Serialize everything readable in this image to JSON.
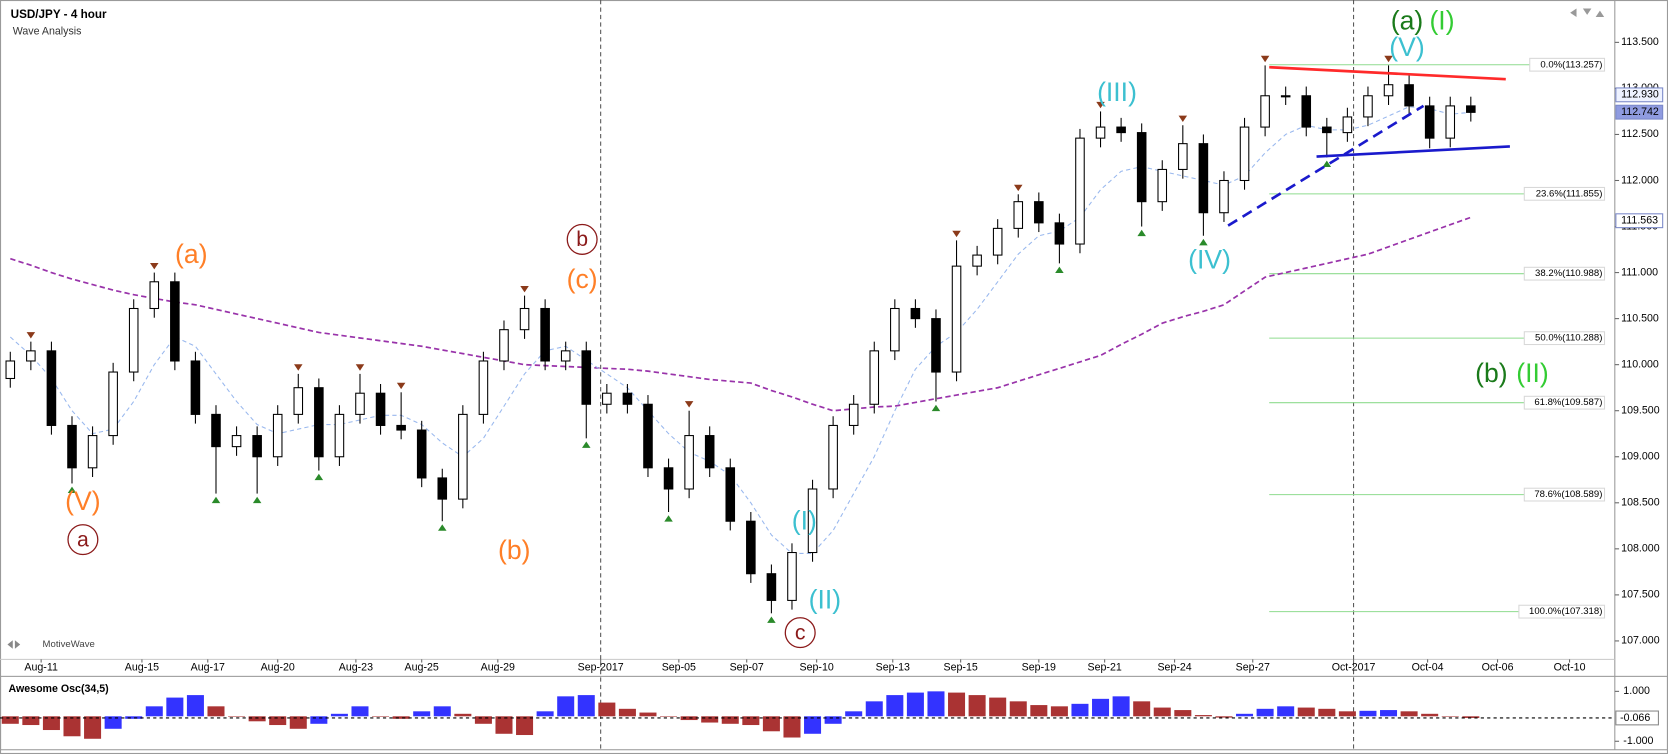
{
  "chart_data": [
    {
      "type": "candlestick",
      "title": "USD/JPY - 4 hour",
      "subtitle": "Wave Analysis",
      "brand": "MotiveWave",
      "grid": false,
      "xlim": [
        -0.5,
        78
      ],
      "ylim": [
        106.8,
        113.96
      ],
      "xticks": [
        {
          "value": 1.5,
          "label": "Aug-11"
        },
        {
          "value": 6.4,
          "label": "Aug-15"
        },
        {
          "value": 9.6,
          "label": "Aug-17"
        },
        {
          "value": 13.0,
          "label": "Aug-20"
        },
        {
          "value": 16.8,
          "label": "Aug-23"
        },
        {
          "value": 20.0,
          "label": "Aug-25"
        },
        {
          "value": 23.7,
          "label": "Aug-29"
        },
        {
          "value": 28.7,
          "label": "Sep-2017"
        },
        {
          "value": 32.5,
          "label": "Sep-05"
        },
        {
          "value": 35.8,
          "label": "Sep-07"
        },
        {
          "value": 39.2,
          "label": "Sep-10"
        },
        {
          "value": 42.9,
          "label": "Sep-13"
        },
        {
          "value": 46.2,
          "label": "Sep-15"
        },
        {
          "value": 50.0,
          "label": "Sep-19"
        },
        {
          "value": 53.2,
          "label": "Sep-21"
        },
        {
          "value": 56.6,
          "label": "Sep-24"
        },
        {
          "value": 60.4,
          "label": "Sep-27"
        },
        {
          "value": 65.3,
          "label": "Oct-2017"
        },
        {
          "value": 68.9,
          "label": "Oct-04"
        },
        {
          "value": 72.3,
          "label": "Oct-06"
        },
        {
          "value": 75.8,
          "label": "Oct-10"
        }
      ],
      "separators": [
        7,
        17
      ],
      "yticks": [
        {
          "value": 107,
          "label": "107.000"
        },
        {
          "value": 107.5,
          "label": "107.500"
        },
        {
          "value": 108,
          "label": "108.000"
        },
        {
          "value": 108.5,
          "label": "108.500"
        },
        {
          "value": 109,
          "label": "109.000"
        },
        {
          "value": 109.5,
          "label": "109.500"
        },
        {
          "value": 110,
          "label": "110.000"
        },
        {
          "value": 110.5,
          "label": "110.500"
        },
        {
          "value": 111,
          "label": "111.000"
        },
        {
          "value": 111.5,
          "label": "111.500"
        },
        {
          "value": 112,
          "label": "112.000"
        },
        {
          "value": 112.5,
          "label": "112.500"
        },
        {
          "value": 113,
          "label": "113.000"
        },
        {
          "value": 113.5,
          "label": "113.500"
        }
      ],
      "open": [
        109.85,
        110.04,
        110.15,
        109.34,
        108.88,
        109.23,
        109.92,
        110.61,
        110.9,
        110.04,
        109.46,
        109.11,
        109.23,
        109.0,
        109.46,
        109.75,
        109.0,
        109.46,
        109.69,
        109.34,
        109.29,
        108.77,
        108.54,
        109.46,
        110.04,
        110.38,
        110.61,
        110.04,
        110.15,
        109.57,
        109.69,
        109.57,
        108.88,
        108.65,
        109.23,
        108.88,
        108.3,
        107.73,
        107.44,
        107.96,
        108.65,
        109.34,
        109.57,
        110.15,
        110.61,
        110.5,
        109.92,
        111.07,
        111.19,
        111.48,
        111.77,
        111.54,
        111.31,
        112.46,
        112.58,
        112.52,
        111.77,
        112.12,
        112.4,
        111.65,
        112.0,
        112.58,
        112.92,
        112.92,
        112.58,
        112.52,
        112.69,
        112.92,
        113.04,
        112.81,
        112.46,
        112.81
      ],
      "high": [
        110.14,
        110.25,
        110.25,
        109.44,
        109.33,
        110.02,
        110.71,
        111.0,
        111.0,
        110.14,
        109.56,
        109.33,
        109.33,
        109.56,
        109.9,
        109.85,
        109.56,
        109.9,
        109.79,
        109.7,
        109.39,
        108.87,
        109.56,
        110.14,
        110.48,
        110.75,
        110.71,
        110.25,
        110.25,
        109.79,
        109.79,
        109.67,
        108.98,
        109.5,
        109.33,
        108.98,
        108.4,
        107.83,
        108.06,
        108.75,
        109.44,
        109.67,
        110.25,
        110.71,
        110.71,
        110.6,
        111.35,
        111.29,
        111.58,
        111.85,
        111.87,
        111.64,
        112.56,
        112.75,
        112.68,
        112.62,
        112.22,
        112.6,
        112.5,
        112.1,
        112.68,
        113.25,
        113.02,
        113.02,
        112.68,
        112.79,
        113.02,
        113.25,
        113.14,
        112.91,
        112.91,
        112.91
      ],
      "low": [
        109.75,
        109.94,
        109.24,
        108.71,
        108.78,
        109.13,
        109.82,
        110.51,
        109.94,
        109.36,
        108.6,
        109.01,
        108.6,
        108.9,
        109.36,
        108.85,
        108.9,
        109.36,
        109.24,
        109.19,
        108.67,
        108.3,
        108.44,
        109.36,
        109.94,
        110.28,
        109.94,
        109.94,
        109.2,
        109.47,
        109.47,
        108.78,
        108.4,
        108.55,
        108.78,
        108.2,
        107.63,
        107.3,
        107.34,
        107.86,
        108.55,
        109.24,
        109.47,
        110.05,
        110.4,
        109.6,
        109.82,
        110.97,
        111.09,
        111.38,
        111.44,
        111.1,
        111.21,
        112.36,
        112.42,
        111.5,
        111.67,
        112.02,
        111.4,
        111.55,
        111.9,
        112.48,
        112.82,
        112.48,
        112.25,
        112.42,
        112.59,
        112.82,
        112.71,
        112.35,
        112.36,
        112.64
      ],
      "close": [
        110.04,
        110.15,
        109.34,
        108.88,
        109.23,
        109.92,
        110.61,
        110.9,
        110.04,
        109.46,
        109.11,
        109.23,
        109.0,
        109.46,
        109.75,
        109.0,
        109.46,
        109.69,
        109.34,
        109.29,
        108.77,
        108.54,
        109.46,
        110.04,
        110.38,
        110.61,
        110.04,
        110.15,
        109.57,
        109.69,
        109.57,
        108.88,
        108.65,
        109.23,
        108.88,
        108.3,
        107.73,
        107.44,
        107.96,
        108.65,
        109.34,
        109.57,
        110.15,
        110.61,
        110.5,
        109.92,
        111.07,
        111.19,
        111.48,
        111.77,
        111.54,
        111.31,
        112.46,
        112.58,
        112.52,
        111.77,
        112.12,
        112.4,
        111.65,
        112.0,
        112.58,
        112.92,
        112.92,
        112.58,
        112.52,
        112.69,
        112.92,
        113.04,
        112.81,
        112.46,
        112.81,
        112.74
      ],
      "up_color": "#ffffff",
      "down_color": "#000000",
      "overlays": [
        {
          "color": "#9933aa",
          "values": [
            111.15,
            111.08,
            111.0,
            110.93,
            110.87,
            110.81,
            110.76,
            110.72,
            110.68,
            110.65,
            110.6,
            110.55,
            110.5,
            110.45,
            110.4,
            110.35,
            110.32,
            110.29,
            110.26,
            110.23,
            110.2,
            110.16,
            110.12,
            110.08,
            110.04,
            110.0,
            109.99,
            109.98,
            109.97,
            109.96,
            109.95,
            109.93,
            109.9,
            109.87,
            109.84,
            109.82,
            109.8,
            109.72,
            109.65,
            109.57,
            109.5,
            109.52,
            109.54,
            109.55,
            109.59,
            109.63,
            109.67,
            109.71,
            109.75,
            109.82,
            109.89,
            109.96,
            110.03,
            110.1,
            110.22,
            110.33,
            110.45,
            110.52,
            110.58,
            110.65,
            110.8,
            110.95,
            111.0,
            111.05,
            111.1,
            111.15,
            111.2,
            111.28,
            111.36,
            111.44,
            111.52,
            111.6
          ]
        },
        {
          "color": "#99b8ee",
          "values": [
            110.3,
            110.1,
            109.85,
            109.5,
            109.25,
            109.3,
            109.6,
            110.0,
            110.3,
            110.2,
            109.9,
            109.6,
            109.35,
            109.25,
            109.3,
            109.35,
            109.35,
            109.4,
            109.45,
            109.45,
            109.35,
            109.15,
            109.0,
            109.2,
            109.55,
            109.9,
            110.15,
            110.2,
            110.05,
            109.9,
            109.75,
            109.5,
            109.25,
            109.05,
            108.95,
            108.8,
            108.5,
            108.15,
            107.95,
            107.95,
            108.2,
            108.6,
            109.0,
            109.5,
            109.95,
            110.2,
            110.35,
            110.6,
            110.9,
            111.2,
            111.4,
            111.45,
            111.6,
            111.9,
            112.1,
            112.15,
            112.1,
            112.05,
            112.0,
            111.95,
            112.05,
            112.3,
            112.5,
            112.6,
            112.55,
            112.55,
            112.6,
            112.7,
            112.8,
            112.78,
            112.72,
            112.74
          ]
        }
      ],
      "swing_highs": [
        1,
        7,
        14,
        17,
        19,
        25,
        33,
        46,
        49,
        53,
        57,
        61,
        67
      ],
      "swing_lows": [
        3,
        10,
        12,
        15,
        21,
        28,
        32,
        37,
        45,
        51,
        55,
        58,
        64
      ],
      "high_marker_color": "#8b3a1a",
      "low_marker_color": "#2a8a2a",
      "fib_x": [
        61.2,
        77.5
      ],
      "fib_color": "#8fdc8f",
      "fib_levels": [
        {
          "value": 113.257,
          "label": "0.0%(113.257)"
        },
        {
          "value": 111.855,
          "label": "23.6%(111.855)"
        },
        {
          "value": 110.988,
          "label": "38.2%(110.988)"
        },
        {
          "value": 110.288,
          "label": "50.0%(110.288)"
        },
        {
          "value": 109.587,
          "label": "61.8%(109.587)"
        },
        {
          "value": 108.589,
          "label": "78.6%(108.589)"
        },
        {
          "value": 107.318,
          "label": "100.0%(107.318)"
        }
      ],
      "trend_lines": [
        {
          "color": "#ff2a2a",
          "dashed": false,
          "x": [
            61.2,
            72.7
          ],
          "y": [
            113.23,
            113.1
          ]
        },
        {
          "color": "#1a1acc",
          "dashed": false,
          "x": [
            63.5,
            72.9
          ],
          "y": [
            112.26,
            112.37
          ]
        },
        {
          "color": "#1a1acc",
          "dashed": true,
          "x": [
            59.2,
            68.7
          ],
          "y": [
            111.51,
            112.81
          ]
        }
      ],
      "annotations": [
        {
          "text": "(a)",
          "color": "#ff7f27",
          "x": 8.8,
          "y": 111.19,
          "circled": false
        },
        {
          "text": "(V)",
          "color": "#ff7f27",
          "x": 3.53,
          "y": 108.51,
          "circled": false
        },
        {
          "text": "a",
          "color": "#8b1a1a",
          "x": 3.53,
          "y": 108.1,
          "circled": true
        },
        {
          "text": "(b)",
          "color": "#ff7f27",
          "x": 24.5,
          "y": 107.98,
          "circled": false
        },
        {
          "text": "b",
          "color": "#8b1a1a",
          "x": 27.8,
          "y": 111.36,
          "circled": true
        },
        {
          "text": "(c)",
          "color": "#ff7f27",
          "x": 27.8,
          "y": 110.92,
          "circled": false
        },
        {
          "text": "c",
          "color": "#8b1a1a",
          "x": 38.4,
          "y": 107.09,
          "circled": true
        },
        {
          "text": "(I)",
          "color": "#3cc0d0",
          "x": 38.6,
          "y": 108.3,
          "circled": false
        },
        {
          "text": "(II)",
          "color": "#3cc0d0",
          "x": 39.6,
          "y": 107.44,
          "circled": false
        },
        {
          "text": "(III)",
          "color": "#3cc0d0",
          "x": 53.8,
          "y": 112.95,
          "circled": false
        },
        {
          "text": "(IV)",
          "color": "#3cc0d0",
          "x": 58.3,
          "y": 111.13,
          "circled": false
        },
        {
          "text": "(V)",
          "color": "#3cc0d0",
          "x": 67.9,
          "y": 113.44,
          "circled": false
        },
        {
          "text": "(a)",
          "color": "#1a7a1a",
          "x": 67.9,
          "y": 113.73,
          "circled": false
        },
        {
          "text": "(I)",
          "color": "#33cc33",
          "x": 69.6,
          "y": 113.73,
          "circled": false
        },
        {
          "text": "(b)",
          "color": "#1a7a1a",
          "x": 72.0,
          "y": 109.9,
          "circled": false
        },
        {
          "text": "(II)",
          "color": "#33cc33",
          "x": 74.0,
          "y": 109.9,
          "circled": false
        }
      ],
      "price_labels": [
        {
          "value": 112.93,
          "label": "112.930",
          "fill": "#eef2ff",
          "text_color": "#000000"
        },
        {
          "value": 112.742,
          "label": "112.742",
          "fill": "#8f9be0",
          "text_color": "#000000"
        },
        {
          "value": 111.563,
          "label": "111.563",
          "fill": "#ffffff",
          "text_color": "#000000"
        }
      ]
    },
    {
      "type": "bar",
      "title": "Awesome Osc(34,5)",
      "ylim": [
        -1.34,
        1.43
      ],
      "yticks": [
        {
          "value": 1,
          "label": "1.000"
        },
        {
          "value": -1,
          "label": "-1.000"
        }
      ],
      "up_color": "#3333ff",
      "down_color": "#aa3333",
      "values": [
        -0.3,
        -0.35,
        -0.55,
        -0.8,
        -0.9,
        -0.5,
        -0.1,
        0.4,
        0.75,
        0.85,
        0.4,
        0.0,
        -0.2,
        -0.35,
        -0.5,
        -0.3,
        0.1,
        0.4,
        0.0,
        -0.1,
        0.2,
        0.4,
        0.1,
        -0.3,
        -0.7,
        -0.75,
        0.2,
        0.8,
        0.85,
        0.55,
        0.3,
        0.15,
        0.0,
        -0.15,
        -0.25,
        -0.3,
        -0.35,
        -0.6,
        -0.85,
        -0.7,
        -0.3,
        0.2,
        0.6,
        0.85,
        0.95,
        1.0,
        0.95,
        0.85,
        0.75,
        0.6,
        0.45,
        0.4,
        0.5,
        0.7,
        0.8,
        0.6,
        0.35,
        0.25,
        0.05,
        -0.05,
        0.1,
        0.3,
        0.4,
        0.35,
        0.3,
        0.2,
        0.22,
        0.25,
        0.2,
        0.1,
        0.0,
        -0.066
      ],
      "last": {
        "value": -0.066,
        "label": "-0.066"
      }
    }
  ]
}
